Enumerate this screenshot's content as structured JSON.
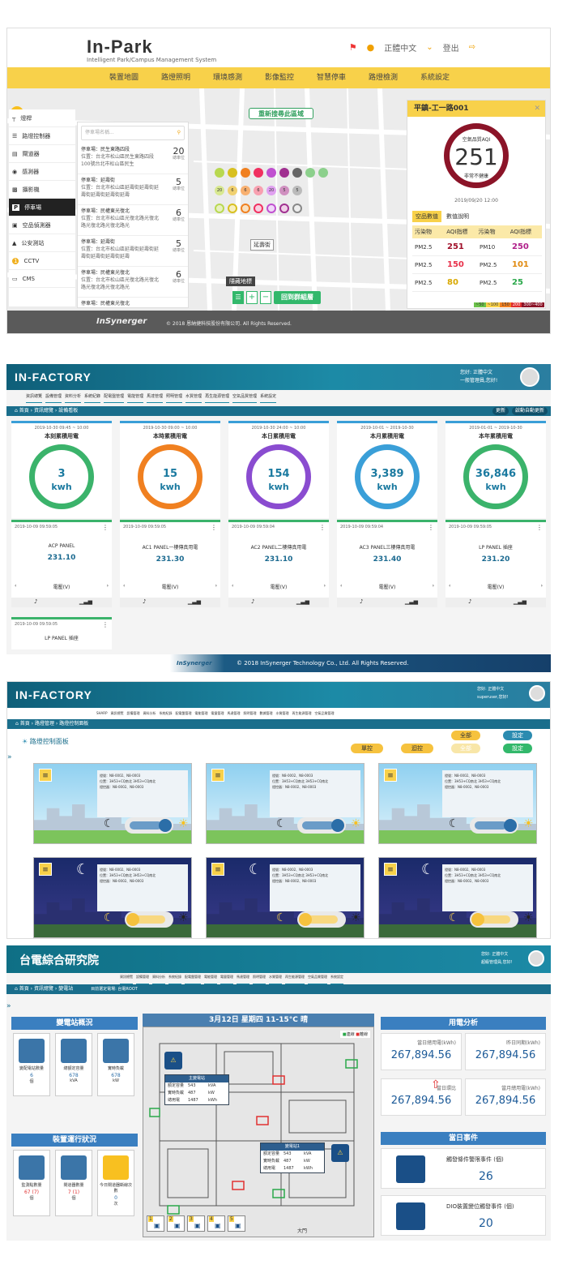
{
  "inpark": {
    "logo": "In-Park",
    "subtitle": "Intelligent Park/Campus Management System",
    "lang": "正體中文",
    "logout": "登出",
    "nav": [
      "裝置地圖",
      "路燈照明",
      "環境感測",
      "影像監控",
      "智慧停車",
      "路燈檢測",
      "系統設定"
    ],
    "map_btn_research": "重新搜尋此區域",
    "map_btn_back": "回到群組層",
    "map_hide": "隱藏地標",
    "map_label": "延壽街",
    "sidebar": [
      "燈桿",
      "路燈控制器",
      "閘道器",
      "感測器",
      "攝影機",
      "停車場",
      "空品偵測器",
      "公安測站",
      "CCTV",
      "CMS"
    ],
    "search_placeholder": "停車場名稱...",
    "list_unit": "總車位",
    "list": [
      {
        "title": "停車場：民生東路四段",
        "addr": "位置：台北市松山區民生東路四段100號台北市松山區民生",
        "count": "20"
      },
      {
        "title": "停車場：延壽街",
        "addr": "位置：台北市松山區延壽街延壽街延壽街延壽街延壽街延壽",
        "count": "5"
      },
      {
        "title": "停車場：民權東光復北",
        "addr": "位置：台北市松山區光復北路光復北路光復北路光復北路光",
        "count": "6"
      },
      {
        "title": "停車場：延壽街",
        "addr": "位置：台北市松山區延壽街延壽街延壽街延壽街延壽街延壽",
        "count": "5"
      },
      {
        "title": "停車場：民權東光復北",
        "addr": "位置：台北市松山區光復北路光復北路光復北路光復北路光",
        "count": "6"
      },
      {
        "title": "停車場：民權東光復北",
        "addr": "",
        "count": ""
      }
    ],
    "aqi_title": "平鎮-工一路001",
    "aqi_label": "空氣品質AQI",
    "aqi_value": "251",
    "aqi_status": "非常不健康",
    "aqi_time": "2019/09/20 12:00",
    "aqi_tabs": [
      "空品數值",
      "數值說明"
    ],
    "aqi_cols": [
      "污染物",
      "AQI指標",
      "污染物",
      "AQI指標"
    ],
    "aqi_rows": [
      [
        "PM2.5",
        "251",
        "PM10",
        "250"
      ],
      [
        "PM2.5",
        "150",
        "PM2.5",
        "101"
      ],
      [
        "PM2.5",
        "80",
        "PM2.5",
        "25"
      ]
    ],
    "aqi_row_colors": [
      [
        "#a0102a",
        "#b0208a"
      ],
      [
        "#e8304a",
        "#e08a10"
      ],
      [
        "#d8a800",
        "#2aa84a"
      ]
    ],
    "legend": [
      "~50",
      "~100",
      "150",
      "200",
      "300~400"
    ],
    "dot_numbers": [
      "20",
      "6",
      "6",
      "6",
      "20",
      "5",
      "5"
    ],
    "footer": "© 2018 恩納捷科技股份有限公司. All Rights Reserved.",
    "brand": "InSynerger"
  },
  "factory": {
    "logo": "IN-FACTORY",
    "user_label": "您好:",
    "user_lang": "正體中文",
    "user_role": "一般管理員,您好!",
    "menu": [
      "資訊總覽",
      "設備管理",
      "資料分析",
      "系統紀錄",
      "配電盤管理",
      "電能管理",
      "馬達管理",
      "照明管理",
      "水質管理",
      "再生能源管理",
      "空氣品質管理",
      "系統設定"
    ],
    "crumb": [
      "首頁",
      "資訊總覽",
      "設備看板"
    ],
    "btn_update": "更新",
    "btn_auto": "啟動自動更新",
    "energy": [
      {
        "date": "2019-10-30 09:45 ~ 10:00",
        "title": "本刻累積用電",
        "value": "3",
        "unit": "kwh"
      },
      {
        "date": "2019-10-30 09:00 ~ 10:00",
        "title": "本時累積用電",
        "value": "15",
        "unit": "kwh"
      },
      {
        "date": "2019-10-30 24:00 ~ 10:00",
        "title": "本日累積用電",
        "value": "154",
        "unit": "kwh"
      },
      {
        "date": "2019-10-01 ~ 2019-10-30",
        "title": "本月累積用電",
        "value": "3,389",
        "unit": "kwh"
      },
      {
        "date": "2019-01-01 ~ 2019-10-30",
        "title": "本年累積用電",
        "value": "36,846",
        "unit": "kwh"
      }
    ],
    "panels": [
      {
        "date": "2019-10-09 09:59:05",
        "name": "ACP PANEL",
        "value": "231.10",
        "label": "電壓(V)"
      },
      {
        "date": "2019-10-09 09:59:05",
        "name": "AC1 PANEL一樓傳真用電",
        "value": "231.30",
        "label": "電壓(V)"
      },
      {
        "date": "2019-10-09 09:59:04",
        "name": "AC2 PANEL二樓傳真用電",
        "value": "231.10",
        "label": "電壓(V)"
      },
      {
        "date": "2019-10-09 09:59:04",
        "name": "AC3 PANEL三樓傳真用電",
        "value": "231.40",
        "label": "電壓(V)"
      },
      {
        "date": "2019-10-09 09:59:05",
        "name": "LP PANEL 插座",
        "value": "231.20",
        "label": "電壓(V)"
      },
      {
        "date": "2019-10-09 09:59:05",
        "name": "LP PANEL 插座",
        "value": "",
        "label": ""
      }
    ],
    "footer": "© 2018 InSynerger Technology Co., Ltd. All Rights Reserved.",
    "brand": "InSynerger"
  },
  "streetlight": {
    "logo": "IN-FACTORY",
    "user_label": "您好:",
    "user_lang": "正體中文",
    "user_role": "superuser,您好!",
    "menu": [
      "SHARP",
      "資訊總覽",
      "設備管理",
      "資料分析",
      "系統紀錄",
      "配電盤管理",
      "電能管理",
      "電量管理",
      "馬達管理",
      "照明管理",
      "數據管理",
      "水質管理",
      "再生能源管理",
      "空氣品質管理"
    ],
    "crumb": [
      "首頁",
      "路燈管理",
      "路燈控制面板"
    ],
    "panel_title": "路燈控制面板",
    "btn_all": "全部",
    "btn_set": "設定",
    "btn_single": "單控",
    "btn_loop": "迴控",
    "info_lines": [
      "燈號：N8-0002、N8-0003",
      "位置：3H53+CQ南北 3H53+CQ南北",
      "燈控器：N8-0002、N8-0003"
    ]
  },
  "tpri": {
    "title": "台電綜合研究院",
    "user_label": "您好:",
    "user_lang": "正體中文",
    "user_role": "超級管理員,您好!",
    "menu": [
      "資訊總覽",
      "設備管理",
      "資料分析",
      "系統紀錄",
      "配電盤管理",
      "電能管理",
      "電量管理",
      "馬達管理",
      "照明管理",
      "水質管理",
      "再生能源管理",
      "空氣品質管理",
      "系統設定"
    ],
    "crumb": [
      "首頁",
      "資訊總覽",
      "變電站"
    ],
    "crumb_note": "目前選定電場: 台電ROOT",
    "substation_title": "變電站概況",
    "substation": [
      {
        "label": "變配電站數量",
        "value": "6",
        "unit": "個"
      },
      {
        "label": "總額定容量",
        "value": "678",
        "unit": "kVA"
      },
      {
        "label": "實時負載",
        "value": "678",
        "unit": "kW"
      }
    ],
    "device_title": "裝置運行狀況",
    "devices": [
      {
        "label": "監測點數量",
        "value": "67 (7)",
        "unit": "個"
      },
      {
        "label": "閘道器數量",
        "value": "7 (1)",
        "unit": "個"
      },
      {
        "label": "今日閘道器斷線次數",
        "value": "0",
        "unit": "次"
      }
    ],
    "weather": "3月12日  星期四  11-15°C  晴",
    "legend": [
      "連線",
      "離線"
    ],
    "map_label1": "主變電站",
    "map_label2": "變電站1",
    "map_label3": "大門",
    "map_rows": [
      [
        "額定容量",
        "543",
        "kVA"
      ],
      [
        "實時負載",
        "487",
        "kW"
      ],
      [
        "總用電",
        "1487",
        "kWh"
      ]
    ],
    "cameras": [
      "1",
      "2",
      "3",
      "4",
      "5"
    ],
    "usage_title": "用電分析",
    "usage": [
      {
        "label": "當日總用電(kWh)",
        "value": "267,894.56"
      },
      {
        "label": "昨日同期(kWh)",
        "value": "267,894.56"
      },
      {
        "label": "當日環比",
        "value": "267,894.56"
      },
      {
        "label": "當月總用電(kWh)",
        "value": "267,894.56"
      }
    ],
    "event_title": "當日事件",
    "events": [
      {
        "label": "觸發條件警限事件 (個)",
        "value": "26"
      },
      {
        "label": "DIO裝置變位觸發事件 (個)",
        "value": "20"
      }
    ]
  }
}
